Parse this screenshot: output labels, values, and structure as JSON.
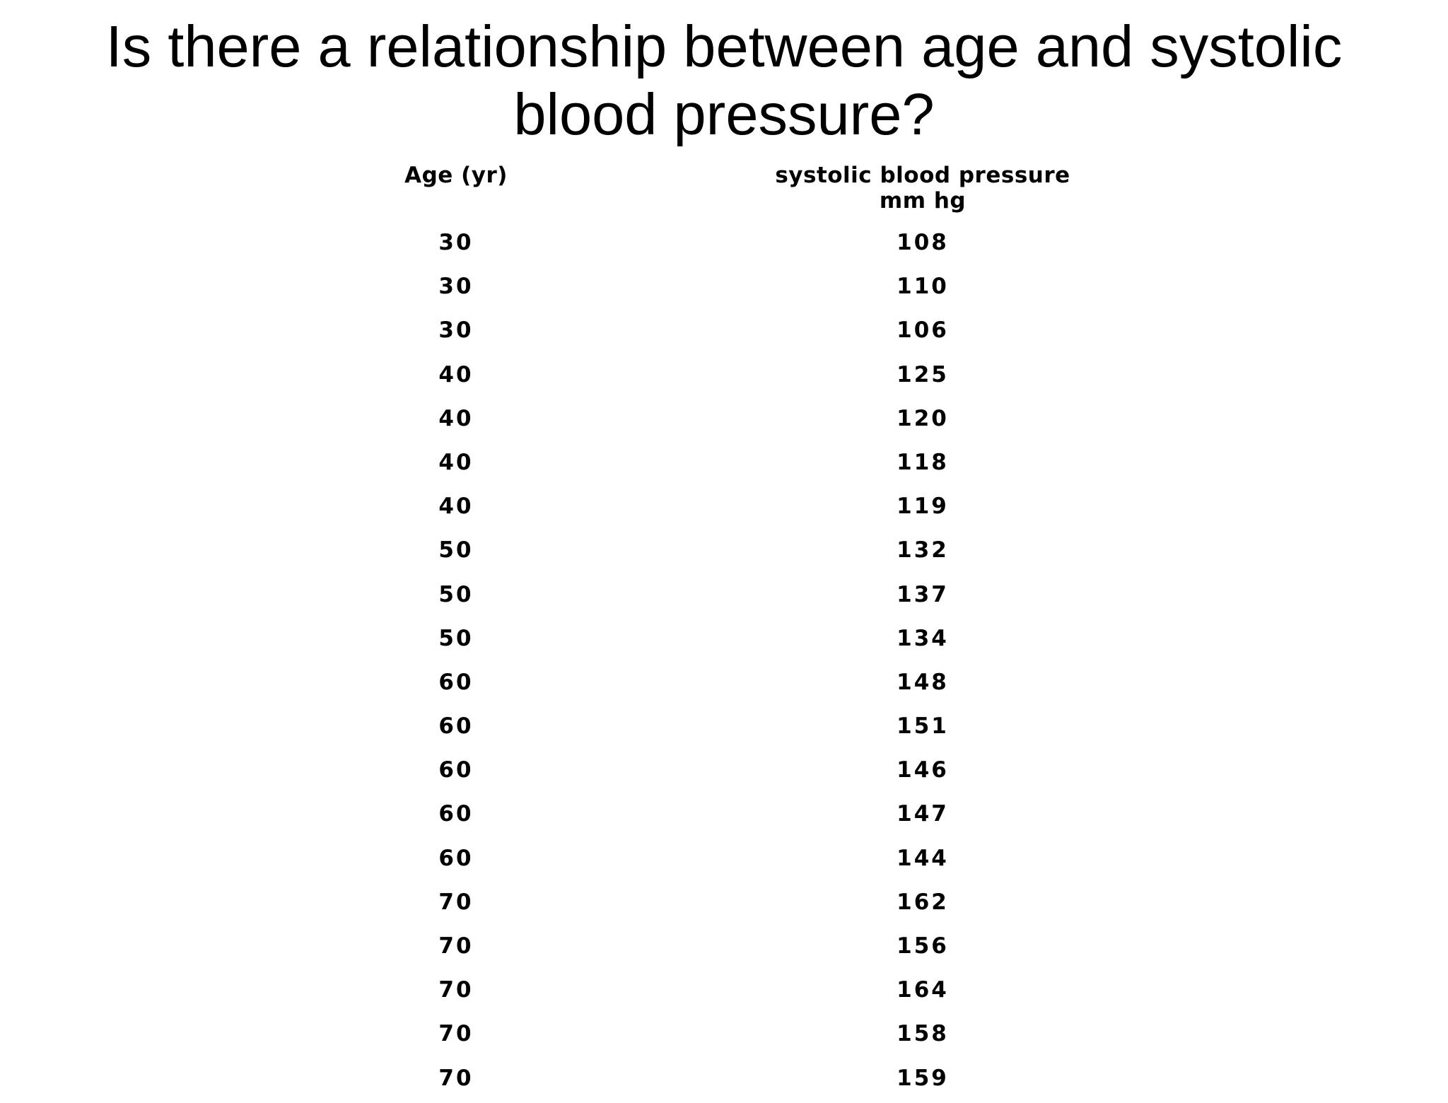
{
  "title": {
    "line1": "Is there a relationship between age and systolic",
    "line2": "blood pressure?"
  },
  "table": {
    "headers": {
      "age": "Age (yr)",
      "bp_line1": "systolic blood pressure",
      "bp_line2": "mm hg"
    },
    "rows": [
      {
        "age": "30",
        "bp": "108"
      },
      {
        "age": "30",
        "bp": "110"
      },
      {
        "age": "30",
        "bp": "106"
      },
      {
        "age": "40",
        "bp": "125"
      },
      {
        "age": "40",
        "bp": "120"
      },
      {
        "age": "40",
        "bp": "118"
      },
      {
        "age": "40",
        "bp": "119"
      },
      {
        "age": "50",
        "bp": "132"
      },
      {
        "age": "50",
        "bp": "137"
      },
      {
        "age": "50",
        "bp": "134"
      },
      {
        "age": "60",
        "bp": "148"
      },
      {
        "age": "60",
        "bp": "151"
      },
      {
        "age": "60",
        "bp": "146"
      },
      {
        "age": "60",
        "bp": "147"
      },
      {
        "age": "60",
        "bp": "144"
      },
      {
        "age": "70",
        "bp": "162"
      },
      {
        "age": "70",
        "bp": "156"
      },
      {
        "age": "70",
        "bp": "164"
      },
      {
        "age": "70",
        "bp": "158"
      },
      {
        "age": "70",
        "bp": "159"
      }
    ]
  }
}
